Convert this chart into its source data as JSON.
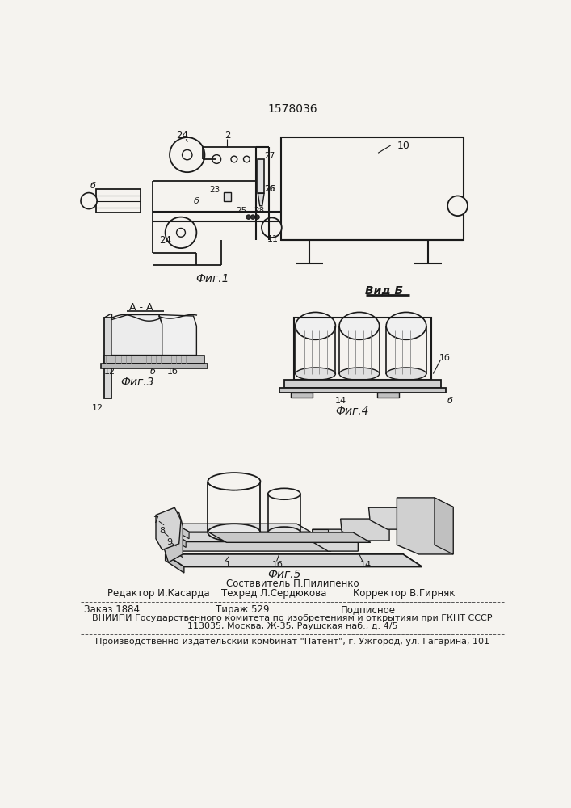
{
  "patent_number": "1578036",
  "background_color": "#f5f3ef",
  "text_color": "#1a1a1a",
  "footer": {
    "line1_center": "Составитель П.Пилипенко",
    "line2_left": "Редактор И.Касарда",
    "line2_center": "Техред Л.Сердюкова",
    "line2_right": "Корректор В.Гирняк",
    "line3_left": "Заказ 1884",
    "line3_center": "Тираж 529",
    "line3_right": "Подписное",
    "line4": "ВНИИПИ Государственного комитета по изобретениям и открытиям при ГКНТ СССР",
    "line5": "113035, Москва, Ж-35, Раушская наб., д. 4/5",
    "line6": "Производственно-издательский комбинат \"Патент\", г. Ужгород, ул. Гагарина, 101"
  },
  "fig_captions": {
    "fig1": "Фиг.1",
    "fig3": "Фиг.3",
    "fig4": "Фиг.4",
    "fig5": "Фиг.5",
    "vid_b": "Вид Б",
    "section_aa": "А - А"
  }
}
